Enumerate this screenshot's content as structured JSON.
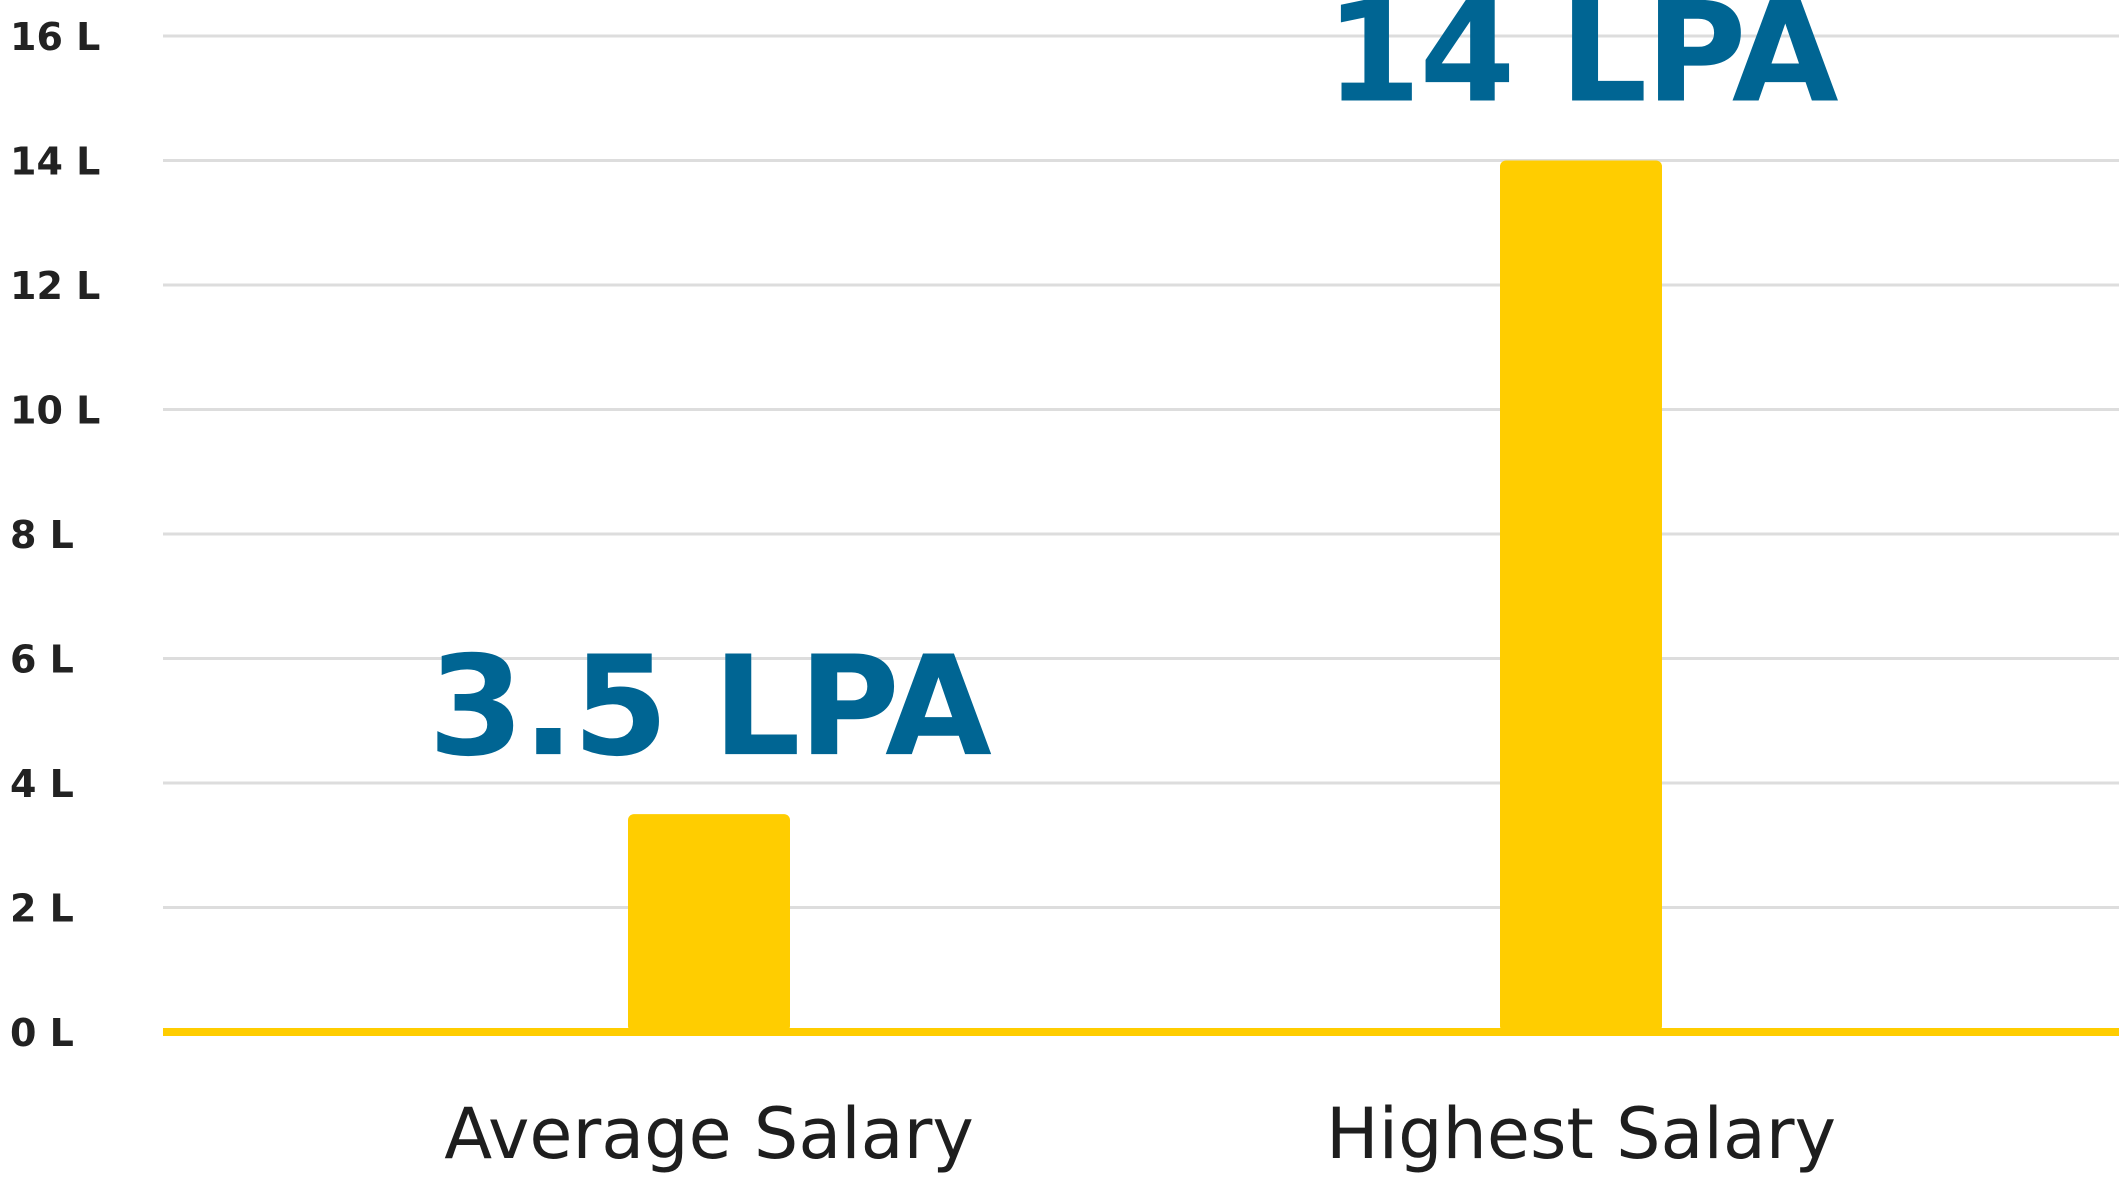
{
  "chart_data": {
    "type": "bar",
    "categories": [
      "Average Salary",
      "Highest Salary"
    ],
    "values": [
      3.5,
      14
    ],
    "data_labels": [
      "3.5 LPA",
      "14 LPA"
    ],
    "y_ticks": [
      {
        "value": 0,
        "label": "0 L"
      },
      {
        "value": 2,
        "label": "2 L"
      },
      {
        "value": 4,
        "label": "4 L"
      },
      {
        "value": 6,
        "label": "6 L"
      },
      {
        "value": 8,
        "label": "8 L"
      },
      {
        "value": 10,
        "label": "10 L"
      },
      {
        "value": 12,
        "label": "12 L"
      },
      {
        "value": 14,
        "label": "14 L"
      },
      {
        "value": 16,
        "label": "16 L"
      }
    ],
    "ylim": [
      0,
      16
    ],
    "grid": true,
    "title": "",
    "xlabel": "",
    "ylabel": "",
    "colors": {
      "bar": "#FFCD00",
      "baseline": "#FFCD00",
      "gridline": "#DDDDDD",
      "data_label": "#006593",
      "tick_label": "#222222",
      "category_label": "#1E1E1E"
    }
  }
}
